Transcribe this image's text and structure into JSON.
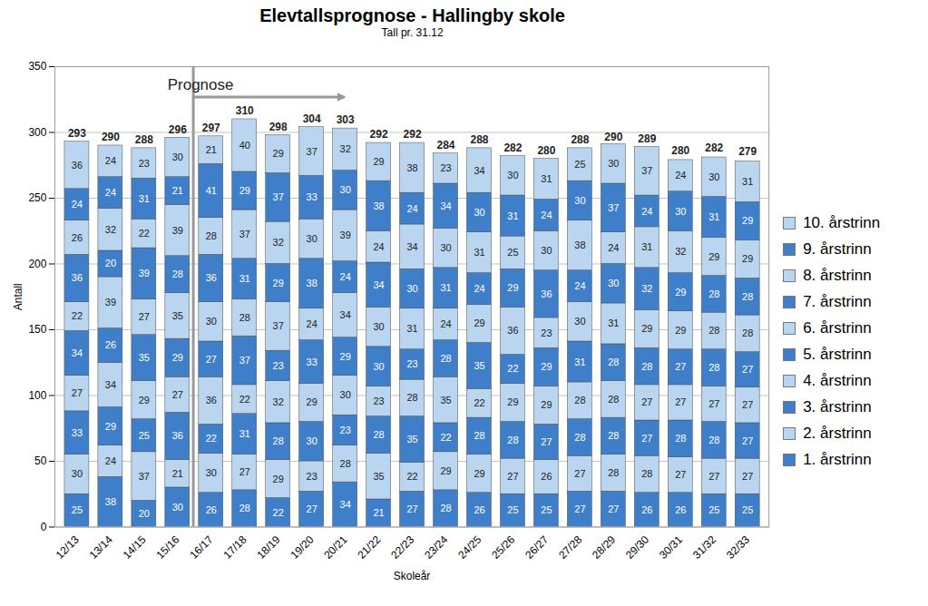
{
  "chart_data": {
    "type": "bar",
    "stacked": true,
    "data_labels": true,
    "grid": true,
    "title": "Elevtallsprognose - Hallingby skole",
    "subtitle": "Tall pr. 31.12",
    "x_label": "Skoleår",
    "y_label": "Antall",
    "ylim": [
      0,
      350
    ],
    "yticks": [
      0,
      50,
      100,
      150,
      200,
      250,
      300,
      350
    ],
    "legend": "right",
    "categories": [
      "12/13",
      "13/14",
      "14/15",
      "15/16",
      "16/17",
      "17/18",
      "18/19",
      "19/20",
      "20/21",
      "21/22",
      "22/23",
      "23/24",
      "24/25",
      "25/26",
      "26/27",
      "27/28",
      "28/29",
      "29/30",
      "30/31",
      "31/32",
      "32/33"
    ],
    "totals": [
      293,
      290,
      288,
      296,
      297,
      310,
      298,
      304,
      303,
      292,
      292,
      284,
      288,
      282,
      280,
      288,
      290,
      289,
      280,
      282,
      279
    ],
    "annotations": [
      {
        "text": "Prognose",
        "x_start": "16/17",
        "x_end": "20/21"
      }
    ],
    "series": [
      {
        "name": "1. årstrinn",
        "color": "#3f7fca",
        "values": [
          25,
          38,
          20,
          30,
          26,
          28,
          22,
          27,
          34,
          21,
          27,
          28,
          26,
          25,
          25,
          27,
          27,
          26,
          26,
          25,
          25
        ]
      },
      {
        "name": "2. årstrinn",
        "color": "#b9d5f0",
        "values": [
          30,
          24,
          37,
          21,
          30,
          27,
          29,
          23,
          28,
          35,
          22,
          29,
          29,
          27,
          26,
          27,
          28,
          28,
          27,
          27,
          27
        ]
      },
      {
        "name": "3. årstrinn",
        "color": "#3f7fca",
        "values": [
          33,
          29,
          25,
          36,
          22,
          31,
          28,
          30,
          23,
          28,
          35,
          22,
          28,
          28,
          27,
          28,
          28,
          27,
          28,
          28,
          27
        ]
      },
      {
        "name": "4. årstrinn",
        "color": "#b9d5f0",
        "values": [
          27,
          34,
          29,
          27,
          36,
          22,
          32,
          29,
          30,
          23,
          28,
          35,
          22,
          29,
          29,
          28,
          28,
          27,
          27,
          27,
          27
        ]
      },
      {
        "name": "5. årstrinn",
        "color": "#3f7fca",
        "values": [
          34,
          26,
          35,
          29,
          27,
          37,
          23,
          33,
          29,
          30,
          23,
          28,
          35,
          22,
          29,
          31,
          28,
          28,
          27,
          28,
          27
        ]
      },
      {
        "name": "6. årstrinn",
        "color": "#b9d5f0",
        "values": [
          22,
          39,
          27,
          35,
          30,
          28,
          37,
          24,
          34,
          30,
          31,
          24,
          29,
          36,
          23,
          30,
          31,
          29,
          29,
          28,
          28
        ]
      },
      {
        "name": "7. årstrinn",
        "color": "#3f7fca",
        "values": [
          36,
          20,
          39,
          28,
          36,
          31,
          29,
          38,
          24,
          34,
          30,
          31,
          24,
          29,
          36,
          24,
          30,
          32,
          29,
          28,
          28
        ]
      },
      {
        "name": "8. årstrinn",
        "color": "#b9d5f0",
        "values": [
          26,
          32,
          22,
          39,
          28,
          37,
          32,
          30,
          39,
          24,
          34,
          30,
          31,
          25,
          30,
          38,
          24,
          31,
          32,
          29,
          29
        ]
      },
      {
        "name": "9. årstrinn",
        "color": "#3f7fca",
        "values": [
          24,
          24,
          31,
          21,
          41,
          29,
          37,
          33,
          30,
          38,
          24,
          34,
          30,
          31,
          24,
          30,
          37,
          24,
          30,
          31,
          29
        ]
      },
      {
        "name": "10. årstrinn",
        "color": "#b9d5f0",
        "values": [
          36,
          24,
          23,
          30,
          21,
          40,
          29,
          37,
          32,
          29,
          38,
          23,
          34,
          30,
          31,
          25,
          30,
          37,
          24,
          30,
          31
        ]
      }
    ]
  }
}
